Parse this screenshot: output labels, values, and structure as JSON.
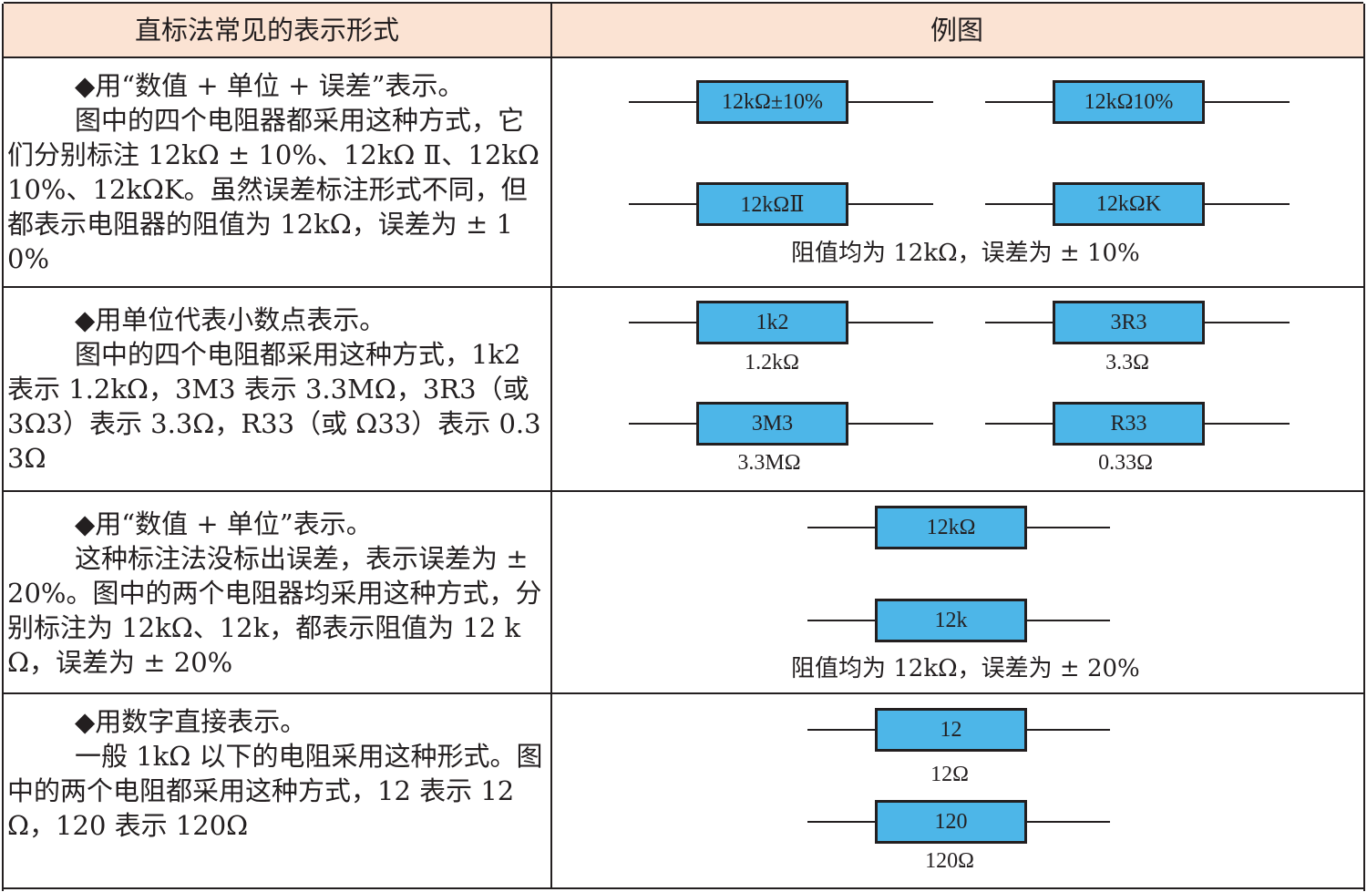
{
  "header": {
    "col1": "直标法常见的表示形式",
    "col2": "例图"
  },
  "rows": [
    {
      "paragraphs": [
        "◆用“数值 + 单位 + 误差”表示。",
        "图中的四个电阻器都采用这种方式，它们分别标注 12kΩ ± 10%、12kΩ Ⅱ、12kΩ10%、12kΩK。虽然误差标注形式不同，但都表示电阻器的阻值为 12kΩ，误差为 ± 10%"
      ],
      "resistors": [
        {
          "label": "12kΩ±10%"
        },
        {
          "label": "12kΩ10%"
        },
        {
          "label": "12kΩⅡ"
        },
        {
          "label": "12kΩK"
        }
      ],
      "note": "阻值均为 12kΩ，误差为 ± 10%"
    },
    {
      "paragraphs": [
        "◆用单位代表小数点表示。",
        "图中的四个电阻都采用这种方式，1k2 表示 1.2kΩ，3M3 表示 3.3MΩ，3R3（或 3Ω3）表示 3.3Ω，R33（或 Ω33）表示 0.33Ω"
      ],
      "resistors": [
        {
          "label": "1k2",
          "value": "1.2kΩ"
        },
        {
          "label": "3R3",
          "value": "3.3Ω"
        },
        {
          "label": "3M3",
          "value": "3.3MΩ"
        },
        {
          "label": "R33",
          "value": "0.33Ω"
        }
      ]
    },
    {
      "paragraphs": [
        "◆用“数值 + 单位”表示。",
        "这种标注法没标出误差，表示误差为 ± 20%。图中的两个电阻器均采用这种方式，分别标注为 12kΩ、12k，都表示阻值为 12 kΩ，误差为 ± 20%"
      ],
      "resistors": [
        {
          "label": "12kΩ"
        },
        {
          "label": "12k"
        }
      ],
      "note": "阻值均为 12kΩ，误差为 ± 20%"
    },
    {
      "paragraphs": [
        "◆用数字直接表示。",
        "一般 1kΩ 以下的电阻采用这种形式。图中的两个电阻都采用这种方式，12 表示 12Ω，120 表示 120Ω"
      ],
      "resistors": [
        {
          "label": "12",
          "value": "12Ω"
        },
        {
          "label": "120",
          "value": "120Ω"
        }
      ]
    }
  ]
}
